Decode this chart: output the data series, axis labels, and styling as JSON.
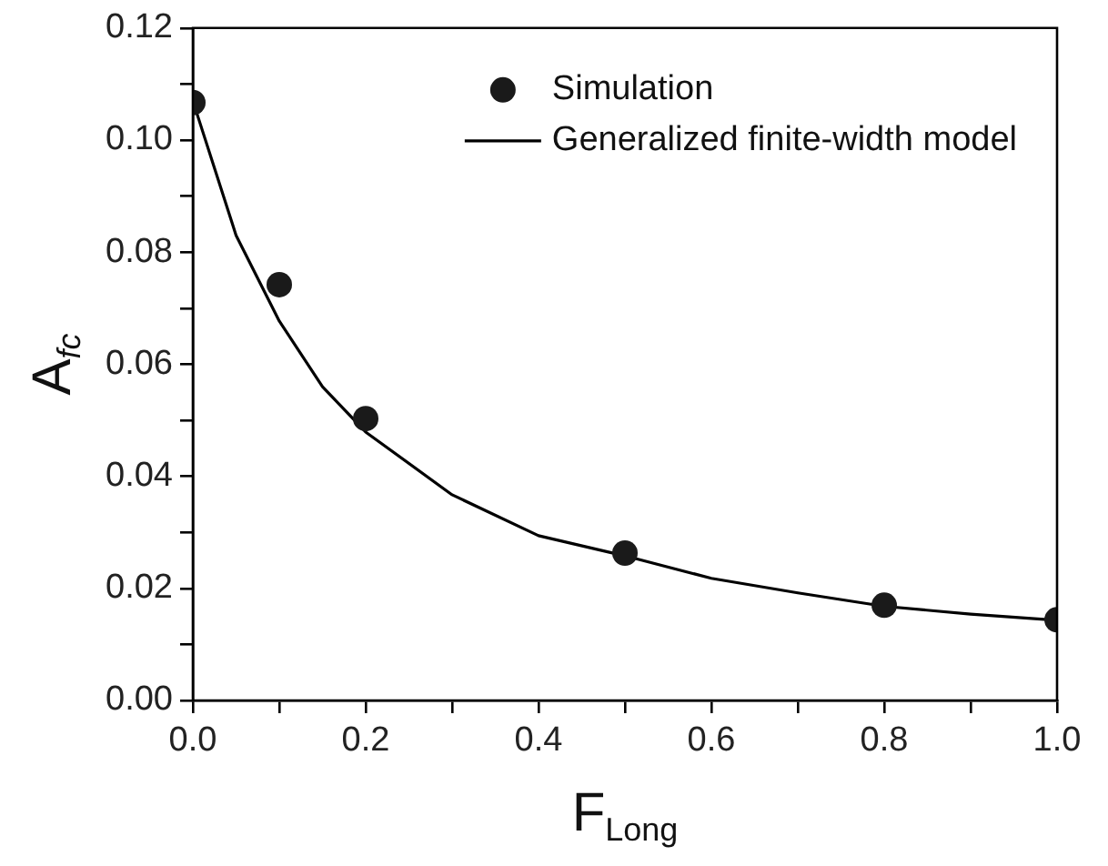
{
  "chart_data": {
    "type": "scatter",
    "xlabel": "F$_{Long}$",
    "ylabel": "A$_{fc}$",
    "xlim": [
      0,
      1
    ],
    "ylim": [
      0,
      0.12
    ],
    "xticks": [
      {
        "value": 0,
        "label": "0.0"
      },
      {
        "value": 0.1,
        "label": null
      },
      {
        "value": 0.2,
        "label": "0.2"
      },
      {
        "value": 0.3,
        "label": null
      },
      {
        "value": 0.4,
        "label": "0.4"
      },
      {
        "value": 0.5,
        "label": null
      },
      {
        "value": 0.6,
        "label": "0.6"
      },
      {
        "value": 0.7,
        "label": null
      },
      {
        "value": 0.8,
        "label": "0.8"
      },
      {
        "value": 0.9,
        "label": null
      },
      {
        "value": 1,
        "label": "1.0"
      }
    ],
    "yticks": [
      {
        "value": 0,
        "label": "0.00"
      },
      {
        "value": 0.01,
        "label": null
      },
      {
        "value": 0.02,
        "label": "0.02"
      },
      {
        "value": 0.03,
        "label": null
      },
      {
        "value": 0.04,
        "label": "0.04"
      },
      {
        "value": 0.05,
        "label": null
      },
      {
        "value": 0.06,
        "label": "0.06"
      },
      {
        "value": 0.07,
        "label": null
      },
      {
        "value": 0.08,
        "label": "0.08"
      },
      {
        "value": 0.09,
        "label": null
      },
      {
        "value": 0.1,
        "label": "0.10"
      },
      {
        "value": 0.11,
        "label": null
      },
      {
        "value": 0.12,
        "label": "0.12"
      }
    ],
    "grid": false,
    "legend": "top right",
    "series": [
      {
        "name": "Simulation",
        "type": "scatter",
        "marker": "circle",
        "color": "#1a1a1a",
        "x": [
          0,
          0.1,
          0.2,
          0.5,
          0.8,
          1.0
        ],
        "values": [
          0.1067,
          0.0742,
          0.0503,
          0.0263,
          0.017,
          0.0144
        ]
      },
      {
        "name": "Generalized finite-width model",
        "type": "line",
        "marker": "none",
        "line_style": "solid",
        "color": "#000000",
        "x": [
          0,
          0.025,
          0.05,
          0.1,
          0.15,
          0.2,
          0.3,
          0.4,
          0.5,
          0.6,
          0.7,
          0.8,
          0.9,
          1.0
        ],
        "values": [
          0.107,
          0.095,
          0.083,
          0.0677,
          0.056,
          0.0479,
          0.0367,
          0.0294,
          0.0258,
          0.0218,
          0.0192,
          0.0168,
          0.0154,
          0.0143
        ]
      }
    ]
  }
}
